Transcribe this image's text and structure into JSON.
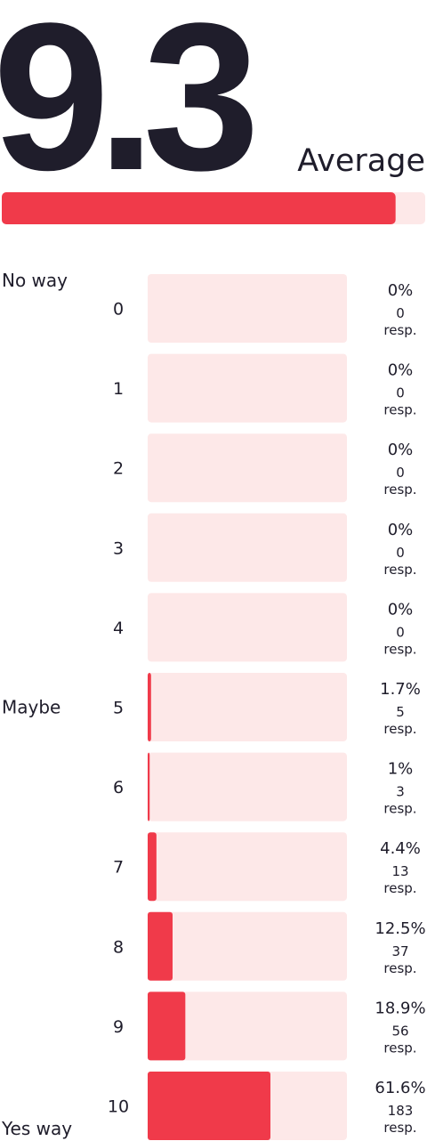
{
  "headline": {
    "value": 9.3,
    "label": "Average",
    "xlim": [
      0,
      10
    ]
  },
  "chart_data": {
    "type": "bar",
    "orientation": "horizontal",
    "categories": [
      "0",
      "1",
      "2",
      "3",
      "4",
      "5",
      "6",
      "7",
      "8",
      "9",
      "10"
    ],
    "values": [
      0,
      0,
      0,
      0,
      0,
      1.7,
      1,
      4.4,
      12.5,
      18.9,
      61.6
    ],
    "value_labels": [
      "0%",
      "0%",
      "0%",
      "0%",
      "0%",
      "1.7%",
      "1%",
      "4.4%",
      "12.5%",
      "18.9%",
      "61.6%"
    ],
    "responses": [
      0,
      0,
      0,
      0,
      0,
      5,
      3,
      13,
      37,
      56,
      183
    ],
    "responses_unit": "resp.",
    "xlim": [
      0,
      100
    ],
    "color": "#f03a4a",
    "track_color": "#fde8e8",
    "anchors": [
      {
        "index": 0,
        "label": "No way"
      },
      {
        "index": 5,
        "label": "Maybe"
      },
      {
        "index": 10,
        "label": "Yes way"
      }
    ]
  }
}
